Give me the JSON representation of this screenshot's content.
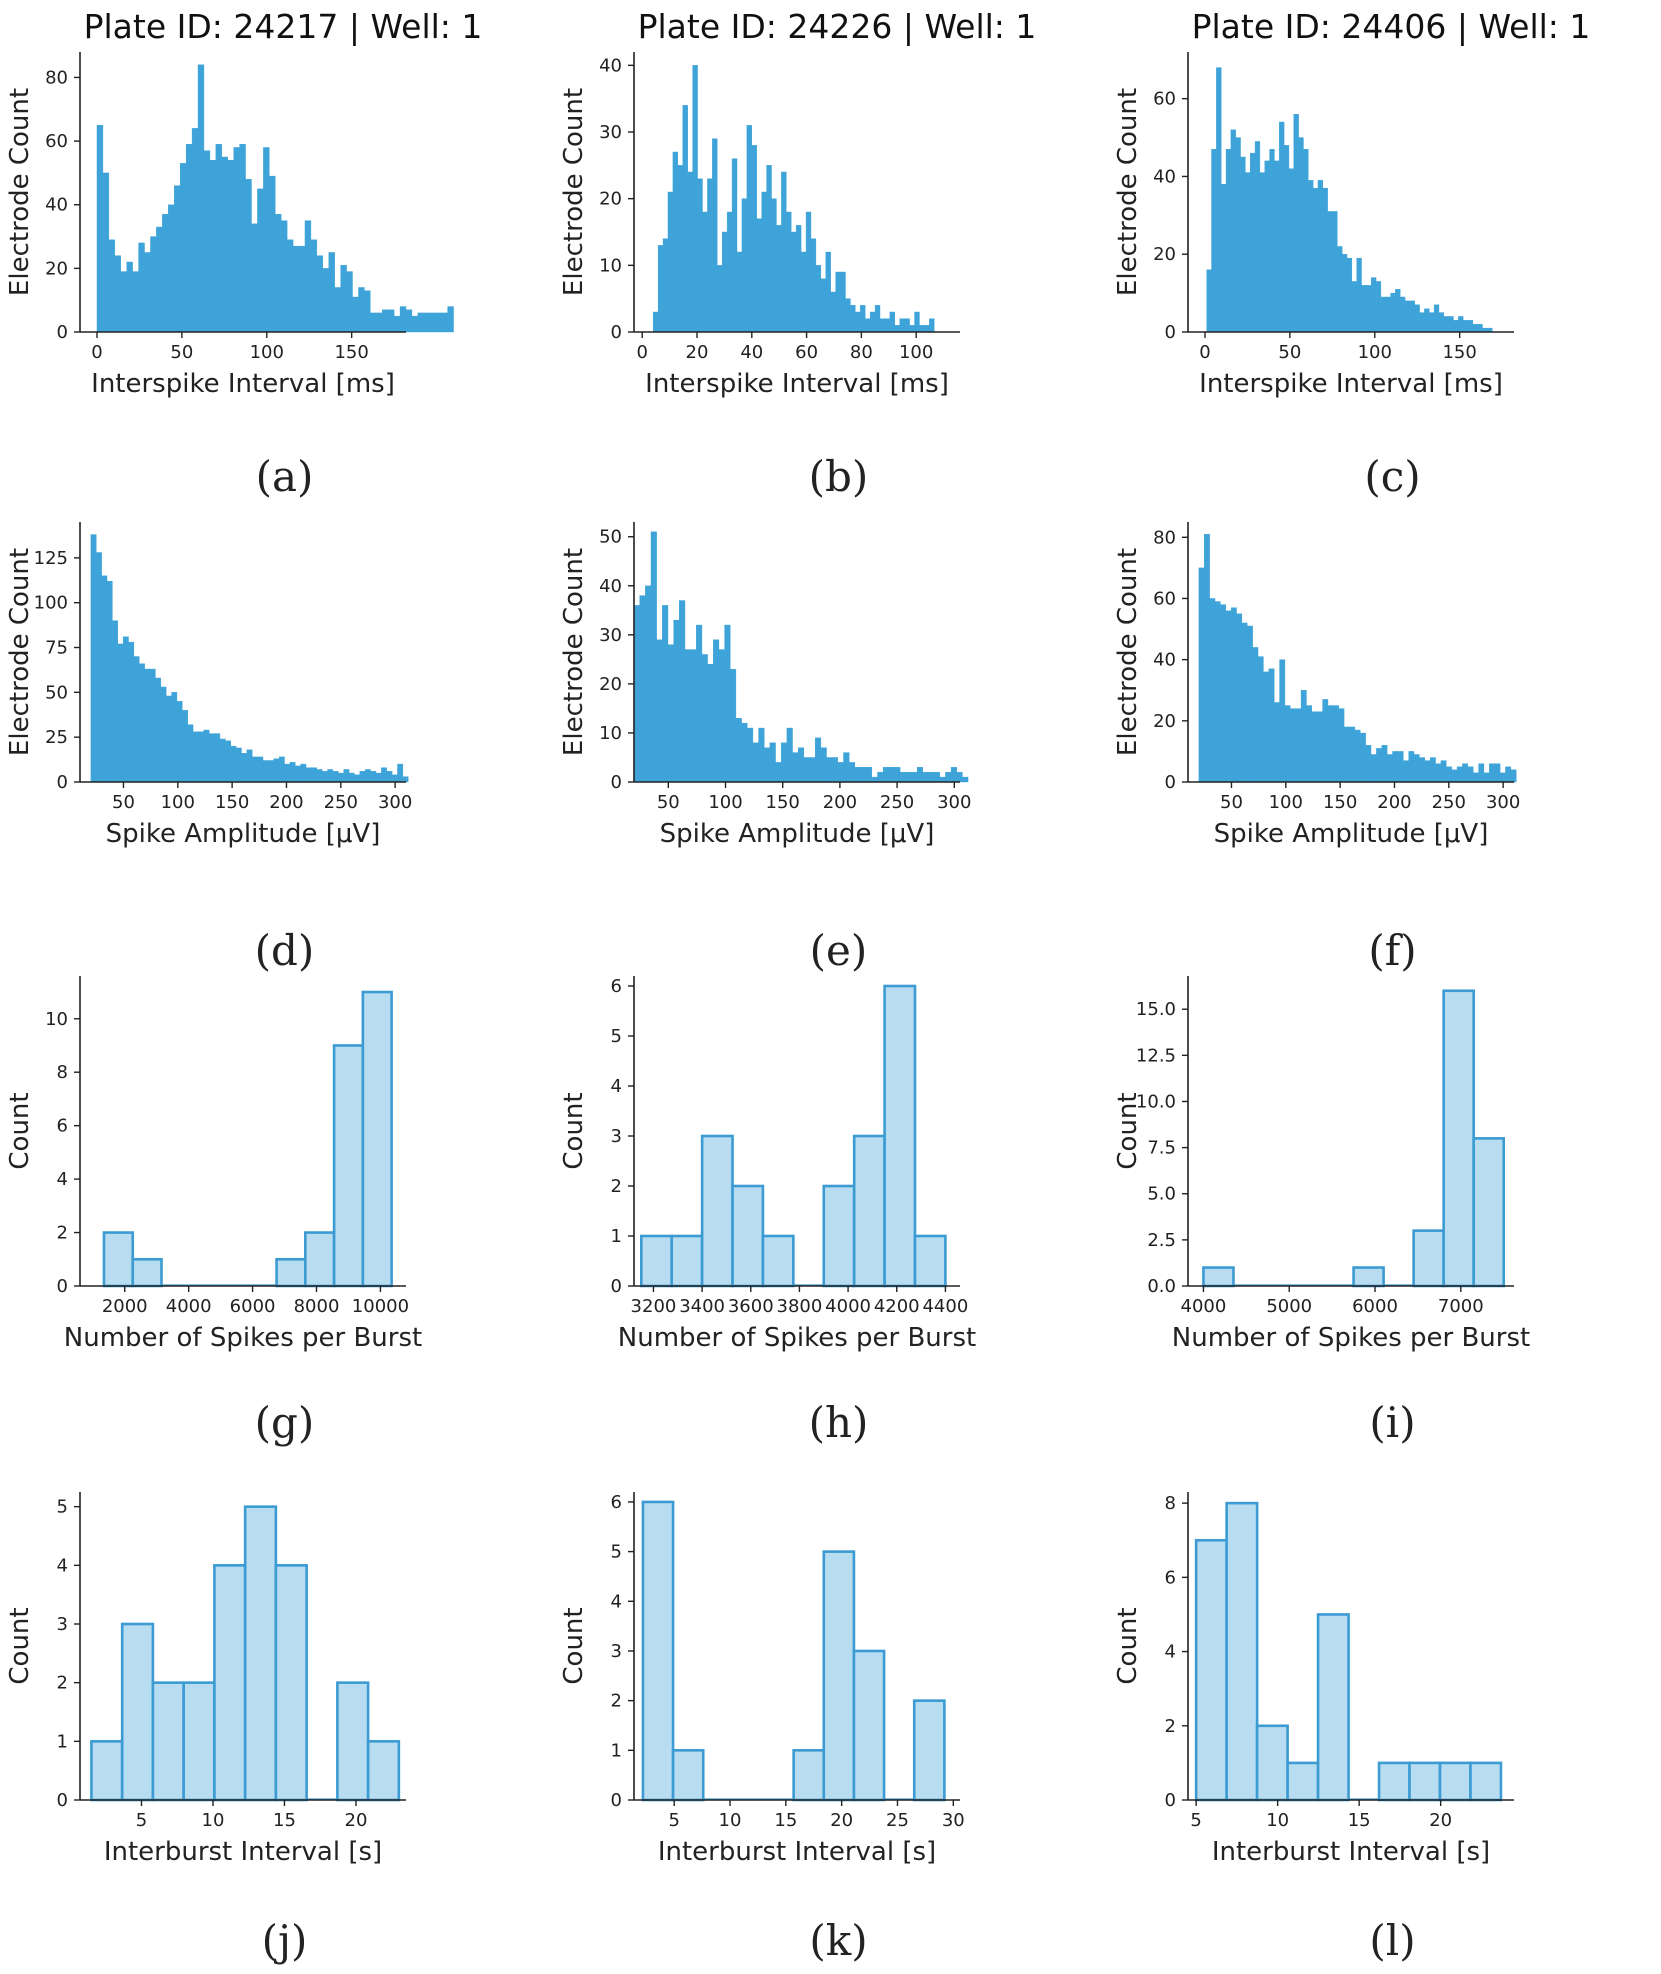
{
  "figure": {
    "captions": [
      "(a)",
      "(b)",
      "(c)",
      "(d)",
      "(e)",
      "(f)",
      "(g)",
      "(h)",
      "(i)",
      "(j)",
      "(k)",
      "(l)"
    ],
    "colors": {
      "dense_fill": "#3ea3d8",
      "light_fill": "#b8dcf0",
      "light_edge": "#3b9bd2",
      "axis": "#222222"
    }
  },
  "chart_data": [
    {
      "id": "a",
      "type": "bar",
      "style": "dense",
      "title": "Plate ID: 24217 | Well: 1",
      "xlabel": "Interspike Interval [ms]",
      "ylabel": "Electrode Count",
      "xlim": [
        -10,
        182
      ],
      "ylim": [
        0,
        88
      ],
      "xticks": [
        0,
        50,
        100,
        150
      ],
      "yticks": [
        0,
        20,
        40,
        60,
        80
      ],
      "bin_start": 0,
      "bin_width": 3.5,
      "values": [
        65,
        50,
        29,
        24,
        19,
        22,
        19,
        28,
        25,
        30,
        33,
        37,
        40,
        46,
        53,
        59,
        64,
        84,
        57,
        54,
        59,
        55,
        54,
        58,
        59,
        48,
        34,
        45,
        58,
        49,
        37,
        35,
        29,
        27,
        27,
        35,
        29,
        24,
        20,
        25,
        14,
        21,
        19,
        11,
        14,
        13,
        6,
        6,
        7,
        7,
        5,
        8,
        7,
        5,
        6,
        6,
        6,
        6,
        6,
        8
      ]
    },
    {
      "id": "b",
      "type": "bar",
      "style": "dense",
      "title": "Plate ID: 24226 | Well: 1",
      "xlabel": "Interspike Interval [ms]",
      "ylabel": "Electrode Count",
      "xlim": [
        -3,
        116
      ],
      "ylim": [
        0,
        42
      ],
      "xticks": [
        0,
        20,
        40,
        60,
        80,
        100
      ],
      "yticks": [
        0,
        10,
        20,
        30,
        40
      ],
      "bin_start": 4,
      "bin_width": 1.8,
      "values": [
        3,
        13,
        14,
        21,
        27,
        25,
        34,
        24,
        40,
        23,
        18,
        23,
        29,
        10,
        15,
        18,
        26,
        12,
        20,
        31,
        28,
        17,
        21,
        25,
        20,
        16,
        24,
        18,
        15,
        16,
        12,
        18,
        14,
        10,
        8,
        12,
        6,
        9,
        9,
        5,
        4,
        3,
        4,
        2,
        3,
        4,
        2,
        2,
        3,
        1,
        2,
        2,
        1,
        3,
        1,
        1,
        2
      ]
    },
    {
      "id": "c",
      "type": "bar",
      "style": "dense",
      "title": "Plate ID: 24406 | Well: 1",
      "xlabel": "Interspike Interval [ms]",
      "ylabel": "Electrode Count",
      "xlim": [
        -10,
        182
      ],
      "ylim": [
        0,
        72
      ],
      "xticks": [
        0,
        50,
        100,
        150
      ],
      "yticks": [
        0,
        20,
        40,
        60
      ],
      "bin_start": 1,
      "bin_width": 2.85,
      "values": [
        16,
        47,
        68,
        38,
        47,
        52,
        50,
        45,
        41,
        46,
        49,
        41,
        44,
        47,
        44,
        54,
        48,
        42,
        56,
        50,
        47,
        39,
        37,
        39,
        37,
        31,
        31,
        22,
        20,
        19,
        13,
        19,
        12,
        12,
        14,
        13,
        9,
        9,
        10,
        11,
        9,
        8,
        8,
        7,
        5,
        6,
        5,
        7,
        5,
        4,
        4,
        3,
        4,
        3,
        3,
        2,
        2,
        1,
        1
      ]
    },
    {
      "id": "d",
      "type": "bar",
      "style": "dense",
      "title": "",
      "xlabel": "Spike Amplitude [μV]",
      "ylabel": "Electrode Count",
      "xlim": [
        10,
        310
      ],
      "ylim": [
        0,
        145
      ],
      "xticks": [
        50,
        100,
        150,
        200,
        250,
        300
      ],
      "yticks": [
        0,
        25,
        50,
        75,
        100,
        125
      ],
      "bin_start": 20,
      "bin_width": 4.95,
      "values": [
        138,
        128,
        115,
        112,
        90,
        77,
        81,
        78,
        70,
        66,
        63,
        63,
        58,
        53,
        48,
        50,
        45,
        40,
        32,
        28,
        28,
        29,
        27,
        27,
        24,
        23,
        20,
        19,
        16,
        18,
        14,
        14,
        12,
        12,
        13,
        14,
        10,
        11,
        9,
        10,
        8,
        8,
        7,
        6,
        7,
        6,
        5,
        7,
        5,
        4,
        6,
        7,
        6,
        5,
        8,
        6,
        4,
        10,
        3
      ]
    },
    {
      "id": "e",
      "type": "bar",
      "style": "dense",
      "title": "",
      "xlabel": "Spike Amplitude [μV]",
      "ylabel": "Electrode Count",
      "xlim": [
        20,
        305
      ],
      "ylim": [
        0,
        53
      ],
      "xticks": [
        50,
        100,
        150,
        200,
        250,
        300
      ],
      "yticks": [
        0,
        10,
        20,
        30,
        40,
        50
      ],
      "bin_start": 20,
      "bin_width": 4.95,
      "values": [
        36,
        38,
        40,
        51,
        29,
        36,
        28,
        33,
        37,
        27,
        27,
        32,
        26,
        24,
        29,
        27,
        32,
        23,
        13,
        12,
        11,
        8,
        11,
        7,
        8,
        4,
        8,
        11,
        6,
        7,
        5,
        5,
        9,
        7,
        5,
        5,
        4,
        6,
        4,
        3,
        3,
        3,
        1,
        2,
        3,
        3,
        3,
        2,
        2,
        2,
        3,
        2,
        2,
        2,
        1,
        2,
        3,
        2,
        1
      ]
    },
    {
      "id": "f",
      "type": "bar",
      "style": "dense",
      "title": "",
      "xlabel": "Spike Amplitude [μV]",
      "ylabel": "Electrode Count",
      "xlim": [
        10,
        310
      ],
      "ylim": [
        0,
        85
      ],
      "xticks": [
        50,
        100,
        150,
        200,
        250,
        300
      ],
      "yticks": [
        0,
        20,
        40,
        60,
        80
      ],
      "bin_start": 20,
      "bin_width": 4.95,
      "values": [
        70,
        81,
        60,
        59,
        58,
        56,
        57,
        55,
        52,
        51,
        44,
        41,
        36,
        37,
        26,
        40,
        25,
        24,
        24,
        30,
        25,
        23,
        23,
        27,
        25,
        25,
        24,
        18,
        18,
        17,
        16,
        12,
        9,
        11,
        12,
        9,
        10,
        10,
        7,
        10,
        9,
        8,
        7,
        8,
        6,
        7,
        5,
        4,
        5,
        6,
        5,
        3,
        6,
        3,
        6,
        6,
        3,
        5,
        4
      ]
    },
    {
      "id": "g",
      "type": "bar",
      "style": "light",
      "title": "",
      "xlabel": "Number of Spikes per Burst",
      "ylabel": "Count",
      "xlim": [
        600,
        10800
      ],
      "ylim": [
        0,
        11.6
      ],
      "xticks": [
        2000,
        4000,
        6000,
        8000,
        10000
      ],
      "yticks": [
        0,
        2,
        4,
        6,
        8,
        10
      ],
      "bin_start": 1350,
      "bin_width": 900,
      "values": [
        2,
        1,
        0,
        0,
        0,
        0,
        1,
        2,
        9,
        11
      ]
    },
    {
      "id": "h",
      "type": "bar",
      "style": "light",
      "title": "",
      "xlabel": "Number of Spikes per Burst",
      "ylabel": "Count",
      "xlim": [
        3120,
        4460
      ],
      "ylim": [
        0,
        6.2
      ],
      "xticks": [
        3200,
        3400,
        3600,
        3800,
        4000,
        4200,
        4400
      ],
      "yticks": [
        0,
        1,
        2,
        3,
        4,
        5,
        6
      ],
      "bin_start": 3150,
      "bin_width": 125,
      "values": [
        1,
        1,
        3,
        2,
        1,
        0,
        2,
        3,
        6,
        1
      ]
    },
    {
      "id": "i",
      "type": "bar",
      "style": "light",
      "title": "",
      "xlabel": "Number of Spikes per Burst",
      "ylabel": "Count",
      "xlim": [
        3820,
        7620
      ],
      "ylim": [
        0,
        16.8
      ],
      "xticks": [
        4000,
        5000,
        6000,
        7000
      ],
      "yticks": [
        0.0,
        2.5,
        5.0,
        7.5,
        10.0,
        12.5,
        15.0
      ],
      "bin_start": 4000,
      "bin_width": 350,
      "values": [
        1,
        0,
        0,
        0,
        0,
        1,
        0,
        3,
        16,
        8
      ],
      "tick_decimals": 1
    },
    {
      "id": "j",
      "type": "bar",
      "style": "light",
      "title": "",
      "xlabel": "Interburst Interval [s]",
      "ylabel": "Count",
      "xlim": [
        0.7,
        23.5
      ],
      "ylim": [
        0,
        5.25
      ],
      "xticks": [
        5,
        10,
        15,
        20
      ],
      "yticks": [
        0,
        1,
        2,
        3,
        4,
        5
      ],
      "bin_start": 1.5,
      "bin_width": 2.15,
      "values": [
        1,
        3,
        2,
        2,
        4,
        5,
        4,
        0,
        2,
        1
      ]
    },
    {
      "id": "k",
      "type": "bar",
      "style": "light",
      "title": "",
      "xlabel": "Interburst Interval [s]",
      "ylabel": "Count",
      "xlim": [
        1.4,
        30.6
      ],
      "ylim": [
        0,
        6.2
      ],
      "xticks": [
        5,
        10,
        15,
        20,
        25,
        30
      ],
      "yticks": [
        0,
        1,
        2,
        3,
        4,
        5,
        6
      ],
      "bin_start": 2.2,
      "bin_width": 2.7,
      "values": [
        6,
        1,
        0,
        0,
        0,
        1,
        5,
        3,
        0,
        2
      ]
    },
    {
      "id": "l",
      "type": "bar",
      "style": "light",
      "title": "",
      "xlabel": "Interburst Interval [s]",
      "ylabel": "Count",
      "xlim": [
        4.5,
        24.5
      ],
      "ylim": [
        0,
        8.3
      ],
      "xticks": [
        5,
        10,
        15,
        20
      ],
      "yticks": [
        0,
        2,
        4,
        6,
        8
      ],
      "bin_start": 5.0,
      "bin_width": 1.87,
      "values": [
        7,
        8,
        2,
        1,
        5,
        0,
        1,
        1,
        1,
        1
      ]
    }
  ]
}
